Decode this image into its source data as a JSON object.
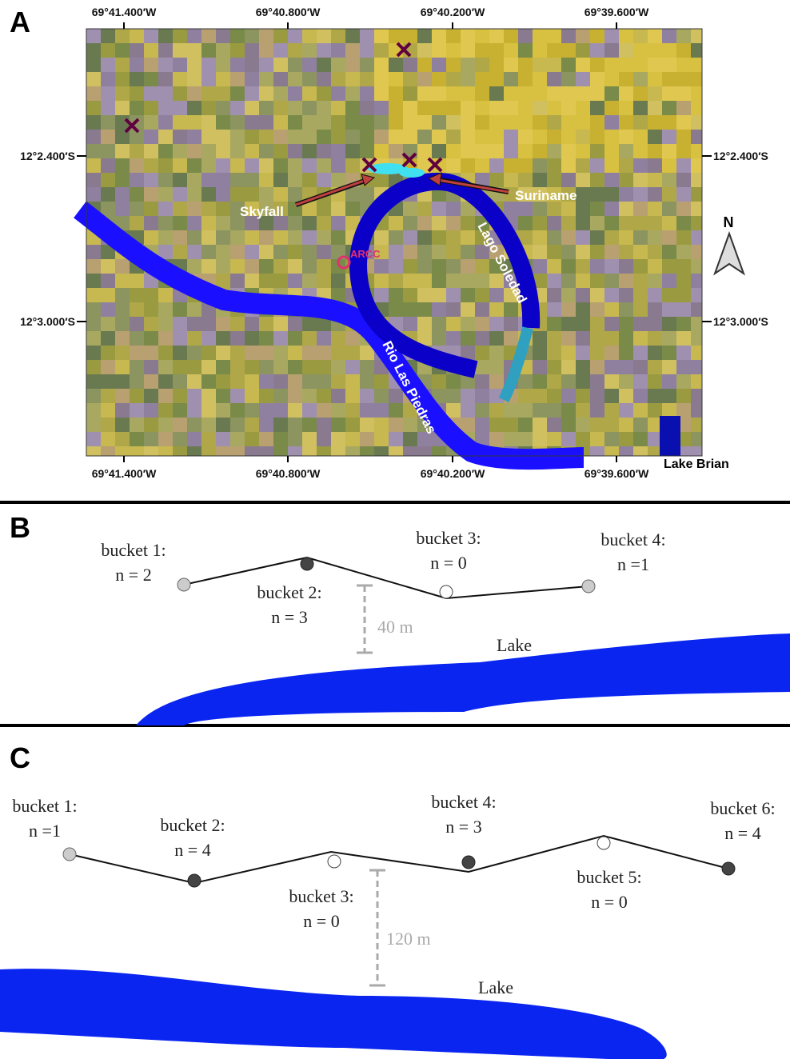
{
  "panel_a": {
    "label": "A",
    "top_longitudes": [
      "69°41.400′W",
      "69°40.800′W",
      "69°40.200′W",
      "69°39.600′W"
    ],
    "bottom_longitudes": [
      "69°41.400′W",
      "69°40.800′W",
      "69°40.200′W",
      "69°39.600′W"
    ],
    "left_latitudes": [
      "12°2.400′S",
      "12°3.000′S"
    ],
    "right_latitudes": [
      "12°2.400′S",
      "12°3.000′S"
    ],
    "places": {
      "skyfall": "Skyfall",
      "suriname": "Suriname",
      "arcc": "ARCC",
      "lago_soledad": "Lago Soledad",
      "rio_las_piedras": "Rio Las Piedras",
      "lake_brian": "Lake Brian"
    },
    "north": "N"
  },
  "panel_b": {
    "label": "B",
    "buckets": [
      {
        "name": "bucket 1:",
        "n": "n = 2"
      },
      {
        "name": "bucket 2:",
        "n": "n = 3"
      },
      {
        "name": "bucket 3:",
        "n": "n = 0"
      },
      {
        "name": "bucket 4:",
        "n": "n =1"
      }
    ],
    "scale": "40 m",
    "lake": "Lake"
  },
  "panel_c": {
    "label": "C",
    "buckets": [
      {
        "name": "bucket 1:",
        "n": "n =1"
      },
      {
        "name": "bucket 2:",
        "n": "n = 4"
      },
      {
        "name": "bucket 3:",
        "n": "n = 0"
      },
      {
        "name": "bucket 4:",
        "n": "n = 3"
      },
      {
        "name": "bucket 5:",
        "n": "n = 0"
      },
      {
        "name": "bucket 6:",
        "n": "n = 4"
      }
    ],
    "scale": "120 m",
    "lake": "Lake"
  }
}
